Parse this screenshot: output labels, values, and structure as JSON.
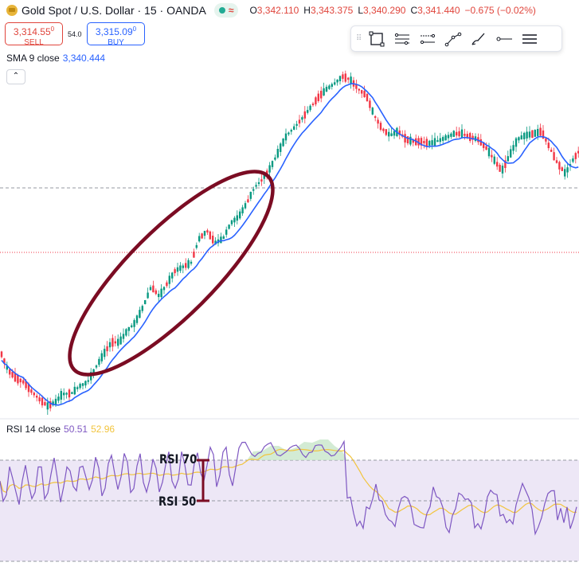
{
  "header": {
    "symbol": "Gold Spot / U.S. Dollar · 15 · OANDA",
    "symbol_icon": "gold-bars-icon",
    "ohlc": {
      "o_label": "O",
      "o": "3,342.110",
      "h_label": "H",
      "h": "3,343.375",
      "l_label": "L",
      "l": "3,340.290",
      "c_label": "C",
      "c": "3,341.440",
      "change": "−0.675 (−0.02%)"
    }
  },
  "trade": {
    "sell_price": "3,314.55",
    "sell_sup": "0",
    "sell_label": "SELL",
    "spread": "54.0",
    "buy_price": "3,315.09",
    "buy_sup": "0",
    "buy_label": "BUY"
  },
  "indicators": {
    "sma": {
      "name": "SMA 9 close",
      "value": "3,340.444"
    },
    "rsi": {
      "name": "RSI 14 close",
      "value": "50.51",
      "ma_value": "52.96"
    }
  },
  "toolbar": {
    "icons": [
      "rectangle-icon",
      "parallel-channel-icon",
      "regression-icon",
      "path-icon",
      "brush-icon",
      "horizontal-ray-icon",
      "menu-icon"
    ]
  },
  "annotations": {
    "rsi70": "RSI 70",
    "rsi50": "RSI 50"
  },
  "colors": {
    "up": "#089981",
    "down": "#f23645",
    "sma": "#2962ff",
    "rsi": "#7e57c2",
    "rsi_ma": "#f2c43d",
    "ellipse": "#7b0c23",
    "bracket": "#7b0c23",
    "rsi_band": "#ede7f6"
  }
}
